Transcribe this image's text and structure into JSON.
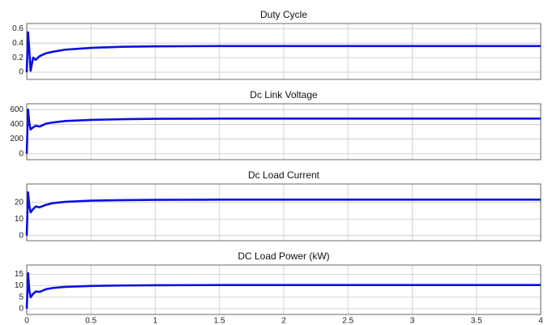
{
  "chart_data": [
    {
      "type": "line",
      "title": "Duty Cycle",
      "color": "#0a10e0",
      "grid": true,
      "x": [
        0,
        0.01,
        0.02,
        0.03,
        0.05,
        0.07,
        0.1,
        0.15,
        0.2,
        0.3,
        0.5,
        0.75,
        1,
        1.5,
        2,
        2.5,
        3,
        3.5,
        4
      ],
      "values": [
        0,
        0.55,
        0.3,
        0.02,
        0.2,
        0.17,
        0.22,
        0.26,
        0.28,
        0.31,
        0.335,
        0.35,
        0.355,
        0.36,
        0.36,
        0.36,
        0.36,
        0.36,
        0.36
      ],
      "xlim": [
        0,
        4
      ],
      "xticks": [
        0,
        0.5,
        1,
        1.5,
        2,
        2.5,
        3,
        3.5,
        4
      ],
      "ylim": [
        -0.1,
        0.67
      ],
      "yticks": [
        0,
        0.2,
        0.4,
        0.6
      ]
    },
    {
      "type": "line",
      "title": "Dc Link Voltage",
      "color": "#0a10e0",
      "grid": true,
      "x": [
        0,
        0.01,
        0.02,
        0.03,
        0.05,
        0.07,
        0.1,
        0.15,
        0.2,
        0.3,
        0.5,
        0.75,
        1,
        1.5,
        2,
        2.5,
        3,
        3.5,
        4
      ],
      "values": [
        0,
        600,
        420,
        330,
        360,
        380,
        370,
        410,
        425,
        445,
        460,
        470,
        475,
        478,
        478,
        478,
        478,
        478,
        478
      ],
      "xlim": [
        0,
        4
      ],
      "xticks": [
        0,
        0.5,
        1,
        1.5,
        2,
        2.5,
        3,
        3.5,
        4
      ],
      "ylim": [
        -80,
        680
      ],
      "yticks": [
        0,
        200,
        400,
        600
      ]
    },
    {
      "type": "line",
      "title": "Dc Load Current",
      "color": "#0a10e0",
      "grid": true,
      "x": [
        0,
        0.01,
        0.02,
        0.03,
        0.05,
        0.07,
        0.1,
        0.15,
        0.2,
        0.3,
        0.5,
        0.75,
        1,
        1.5,
        2,
        2.5,
        3,
        3.5,
        4
      ],
      "values": [
        0,
        26,
        18,
        14,
        16,
        17.5,
        17,
        18.5,
        19.5,
        20.3,
        21,
        21.3,
        21.5,
        21.6,
        21.6,
        21.6,
        21.6,
        21.6,
        21.6
      ],
      "xlim": [
        0,
        4
      ],
      "xticks": [
        0,
        0.5,
        1,
        1.5,
        2,
        2.5,
        3,
        3.5,
        4
      ],
      "ylim": [
        -3,
        31
      ],
      "yticks": [
        0,
        10,
        20
      ]
    },
    {
      "type": "line",
      "title": "DC Load Power (kW)",
      "color": "#0a10e0",
      "grid": true,
      "x": [
        0,
        0.01,
        0.02,
        0.03,
        0.05,
        0.07,
        0.1,
        0.15,
        0.2,
        0.3,
        0.5,
        0.75,
        1,
        1.5,
        2,
        2.5,
        3,
        3.5,
        4
      ],
      "values": [
        0,
        15.5,
        8,
        5,
        6.5,
        7.5,
        7.3,
        8.5,
        9,
        9.5,
        9.9,
        10.1,
        10.2,
        10.3,
        10.3,
        10.3,
        10.3,
        10.3,
        10.3
      ],
      "xlim": [
        0,
        4
      ],
      "xticks": [
        0,
        0.5,
        1,
        1.5,
        2,
        2.5,
        3,
        3.5,
        4
      ],
      "ylim": [
        -2.5,
        19
      ],
      "yticks": [
        0,
        5,
        10,
        15
      ]
    }
  ]
}
